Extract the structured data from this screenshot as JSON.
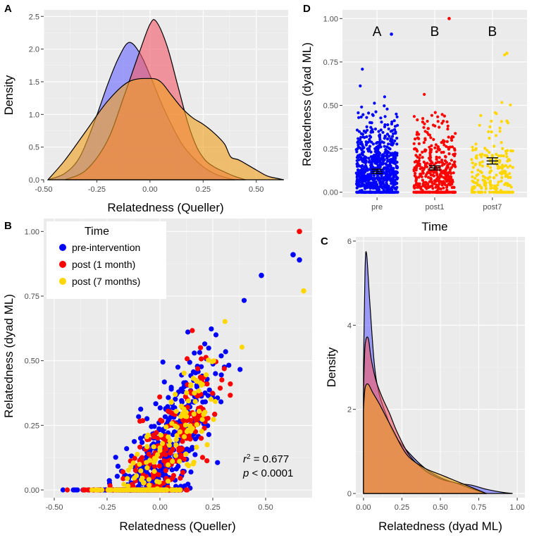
{
  "colors": {
    "pre": "#0000ff",
    "post1": "#ff0000",
    "post7": "#ffd700",
    "density_pre": "#6b6bff",
    "density_post1": "#f25c6a",
    "density_post7": "#f0a020",
    "density_overlap": "#e08a3a"
  },
  "panel_labels": {
    "A": "A",
    "B": "B",
    "C": "C",
    "D": "D"
  },
  "chart_data": [
    {
      "id": "A",
      "type": "area",
      "title": "",
      "xlabel": "Relatedness (Queller)",
      "ylabel": "Density",
      "xlim": [
        -0.5,
        0.65
      ],
      "ylim": [
        0,
        2.6
      ],
      "xticks": [
        -0.5,
        -0.25,
        0.0,
        0.25,
        0.5
      ],
      "xtick_labels": [
        "-0.50",
        "-0.25",
        "0.00",
        "0.25",
        "0.50"
      ],
      "yticks": [
        0.0,
        0.5,
        1.0,
        1.5,
        2.0,
        2.5
      ],
      "ytick_labels": [
        "0.0",
        "0.5",
        "1.0",
        "1.5",
        "2.0",
        "2.5"
      ],
      "series": [
        {
          "name": "pre-intervention",
          "color_key": "density_pre",
          "x": [
            -0.48,
            -0.4,
            -0.33,
            -0.26,
            -0.2,
            -0.15,
            -0.1,
            -0.05,
            0.0,
            0.05,
            0.1,
            0.15,
            0.2,
            0.25,
            0.3,
            0.35,
            0.4
          ],
          "y": [
            0.0,
            0.1,
            0.35,
            0.9,
            1.45,
            1.85,
            2.1,
            1.95,
            1.6,
            1.2,
            0.85,
            0.55,
            0.35,
            0.2,
            0.1,
            0.04,
            0.0
          ]
        },
        {
          "name": "post (1 month)",
          "color_key": "density_post1",
          "x": [
            -0.4,
            -0.3,
            -0.2,
            -0.12,
            -0.05,
            0.0,
            0.03,
            0.08,
            0.13,
            0.18,
            0.22,
            0.26,
            0.3,
            0.35,
            0.4,
            0.45
          ],
          "y": [
            0.0,
            0.15,
            0.6,
            1.3,
            1.95,
            2.38,
            2.42,
            2.05,
            1.45,
            0.85,
            0.5,
            0.3,
            0.2,
            0.12,
            0.05,
            0.0
          ]
        },
        {
          "name": "post (7 months)",
          "color_key": "density_post7",
          "x": [
            -0.48,
            -0.4,
            -0.3,
            -0.2,
            -0.1,
            0.0,
            0.05,
            0.1,
            0.15,
            0.2,
            0.25,
            0.3,
            0.35,
            0.38,
            0.42,
            0.5,
            0.55,
            0.6,
            0.63
          ],
          "y": [
            0.0,
            0.3,
            0.75,
            1.2,
            1.5,
            1.55,
            1.5,
            1.3,
            1.1,
            0.95,
            0.85,
            0.72,
            0.55,
            0.35,
            0.3,
            0.15,
            0.06,
            0.02,
            0.0
          ]
        }
      ]
    },
    {
      "id": "B",
      "type": "scatter",
      "xlabel": "Relatedness (Queller)",
      "ylabel": "Relatedness (dyad ML)",
      "xlim": [
        -0.55,
        0.72
      ],
      "ylim": [
        -0.03,
        1.05
      ],
      "xticks": [
        -0.5,
        -0.25,
        0.0,
        0.25,
        0.5
      ],
      "xtick_labels": [
        "-0.50",
        "-0.25",
        "0.00",
        "0.25",
        "0.50"
      ],
      "yticks": [
        0.0,
        0.25,
        0.5,
        0.75,
        1.0
      ],
      "ytick_labels": [
        "0.00",
        "0.25",
        "0.50",
        "0.75",
        "1.00"
      ],
      "legend": {
        "title": "Time",
        "entries": [
          "pre-intervention",
          "post (1 month)",
          "post (7 months)"
        ],
        "position": "top-left"
      },
      "annotation": {
        "r2": "r",
        "r2_sup": "2",
        "r2_value": " = 0.677",
        "p_label": "p",
        "p_value": " < 0.0001"
      },
      "series": [
        {
          "name": "pre-intervention",
          "color_key": "pre",
          "n": 760,
          "slope": 1.15,
          "intercept": 0.1,
          "spread": 0.12
        },
        {
          "name": "post (1 month)",
          "color_key": "post1",
          "n": 420,
          "slope": 1.15,
          "intercept": 0.1,
          "spread": 0.1
        },
        {
          "name": "post (7 months)",
          "color_key": "post7",
          "n": 220,
          "slope": 1.15,
          "intercept": 0.1,
          "spread": 0.1
        }
      ],
      "highlights": [
        {
          "series": "post (1 month)",
          "x": 0.66,
          "y": 1.0
        },
        {
          "series": "pre-intervention",
          "x": 0.63,
          "y": 0.91
        },
        {
          "series": "pre-intervention",
          "x": 0.66,
          "y": 0.89
        },
        {
          "series": "post (7 months)",
          "x": 0.68,
          "y": 0.77
        },
        {
          "series": "pre-intervention",
          "x": 0.48,
          "y": 0.83
        }
      ]
    },
    {
      "id": "C",
      "type": "area",
      "xlabel": "Relatedness (dyad ML)",
      "ylabel": "Density",
      "xlim": [
        -0.05,
        1.05
      ],
      "ylim": [
        -0.1,
        6.1
      ],
      "xticks": [
        0.0,
        0.25,
        0.5,
        0.75,
        1.0
      ],
      "xtick_labels": [
        "0.00",
        "0.25",
        "0.50",
        "0.75",
        "1.00"
      ],
      "yticks": [
        0,
        2,
        4,
        6
      ],
      "ytick_labels": [
        "0",
        "2",
        "4",
        "6"
      ],
      "series": [
        {
          "name": "pre-intervention",
          "color_key": "density_pre",
          "x": [
            0.0,
            0.01,
            0.02,
            0.04,
            0.07,
            0.1,
            0.15,
            0.2,
            0.3,
            0.4,
            0.5,
            0.6,
            0.7,
            0.8,
            0.9,
            0.97
          ],
          "y": [
            3.0,
            5.3,
            5.7,
            4.6,
            3.1,
            2.4,
            1.85,
            1.4,
            0.95,
            0.6,
            0.38,
            0.25,
            0.2,
            0.1,
            0.03,
            0.0
          ]
        },
        {
          "name": "post (1 month)",
          "color_key": "density_post1",
          "x": [
            0.0,
            0.01,
            0.03,
            0.05,
            0.08,
            0.12,
            0.17,
            0.22,
            0.3,
            0.4,
            0.5,
            0.6,
            0.7,
            0.8
          ],
          "y": [
            2.4,
            3.5,
            3.7,
            3.2,
            2.7,
            2.3,
            1.9,
            1.45,
            0.9,
            0.55,
            0.35,
            0.25,
            0.12,
            0.0
          ]
        },
        {
          "name": "post (7 months)",
          "color_key": "density_post7",
          "x": [
            0.0,
            0.01,
            0.03,
            0.06,
            0.1,
            0.15,
            0.2,
            0.25,
            0.3,
            0.4,
            0.5,
            0.6,
            0.7,
            0.8
          ],
          "y": [
            2.0,
            2.5,
            2.6,
            2.4,
            2.15,
            1.8,
            1.45,
            1.1,
            0.85,
            0.6,
            0.45,
            0.3,
            0.15,
            0.0
          ]
        }
      ]
    },
    {
      "id": "D",
      "type": "scatter",
      "xlabel": "Time",
      "ylabel": "Relatedness (dyad ML)",
      "categories": [
        "pre",
        "post1",
        "post7"
      ],
      "xlim": [
        0.4,
        3.6
      ],
      "ylim": [
        -0.03,
        1.05
      ],
      "yticks": [
        0.0,
        0.25,
        0.5,
        0.75,
        1.0
      ],
      "ytick_labels": [
        "0.00",
        "0.25",
        "0.50",
        "0.75",
        "1.00"
      ],
      "group_letters": [
        "A",
        "B",
        "B"
      ],
      "means": [
        0.12,
        0.14,
        0.18
      ],
      "sem": [
        0.012,
        0.012,
        0.018
      ],
      "series": [
        {
          "name": "pre",
          "color_key": "pre",
          "n": 760,
          "max": 0.91
        },
        {
          "name": "post1",
          "color_key": "post1",
          "n": 420,
          "max": 1.0
        },
        {
          "name": "post7",
          "color_key": "post7",
          "n": 220,
          "max": 0.8
        }
      ]
    }
  ]
}
